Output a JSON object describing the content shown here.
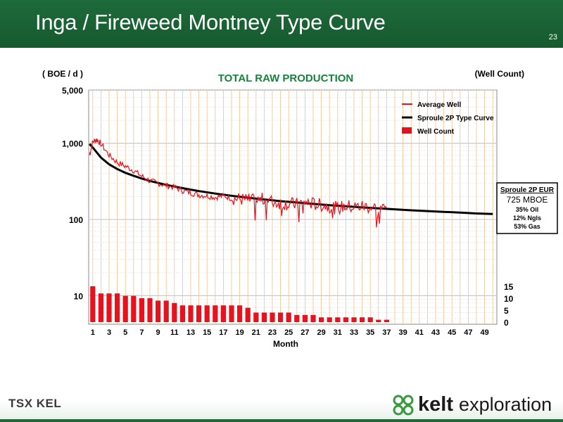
{
  "slide": {
    "title": "Inga / Fireweed Montney Type Curve",
    "page_number": "23"
  },
  "footer": {
    "tsx_logo_text": "TSX KEL",
    "company_name": "kelt",
    "company_suffix": "exploration"
  },
  "colors": {
    "header_green": "#1e6a3a",
    "average_well": "#e8121d",
    "type_curve": "#000000",
    "well_count": "#e8121d",
    "title_green": "#16823c",
    "grid_orange": "#f3c08a"
  },
  "eur_box": {
    "title": "Sproule 2P EUR",
    "value": "725 MBOE",
    "oil": "35% Oil",
    "ngls": "12% Ngls",
    "gas": "53% Gas"
  },
  "chart_data": {
    "type": "line",
    "title": "TOTAL RAW PRODUCTION",
    "ylabel": "( BOE / d )",
    "y2label": "(Well Count)",
    "xlabel": "Month",
    "yscale": "log",
    "ylim": [
      5,
      5000
    ],
    "y_ticks": [
      "5,000",
      "1,000",
      "100",
      "10"
    ],
    "y_tick_values": [
      5000,
      1000,
      100,
      10
    ],
    "y2_ticks": [
      "15",
      "10",
      "5",
      "0"
    ],
    "y2_tick_values": [
      15,
      10,
      5,
      0
    ],
    "y2lim": [
      0,
      15
    ],
    "x_ticks": [
      "1",
      "3",
      "5",
      "7",
      "9",
      "11",
      "13",
      "15",
      "17",
      "19",
      "21",
      "23",
      "25",
      "27",
      "29",
      "31",
      "33",
      "35",
      "37",
      "39",
      "41",
      "43",
      "45",
      "47",
      "49"
    ],
    "xlim": [
      0.5,
      50.5
    ],
    "grid": true,
    "legend_position": "top-right",
    "legend": [
      "Average Well",
      "Sproule 2P Type Curve",
      "Well Count"
    ],
    "series": [
      {
        "name": "Average Well",
        "kind": "line",
        "x": [
          0.6,
          1,
          1.5,
          2,
          3,
          4,
          5,
          6,
          7,
          8,
          9,
          10,
          11,
          12,
          13,
          14,
          15,
          16,
          17,
          18,
          19,
          20,
          21,
          22,
          23,
          24,
          25,
          26,
          27,
          28,
          29,
          30,
          31,
          32,
          33,
          34,
          35,
          36,
          37
        ],
        "values": [
          700,
          1050,
          1120,
          980,
          700,
          560,
          500,
          440,
          370,
          320,
          300,
          280,
          265,
          240,
          225,
          210,
          205,
          195,
          205,
          190,
          185,
          180,
          175,
          185,
          170,
          165,
          160,
          158,
          170,
          160,
          155,
          150,
          140,
          150,
          145,
          150,
          145,
          140,
          140
        ]
      },
      {
        "name": "Sproule 2P Type Curve",
        "kind": "line",
        "x": [
          0.6,
          1,
          2,
          3,
          4,
          5,
          6,
          7,
          8,
          10,
          12,
          14,
          16,
          18,
          20,
          22,
          24,
          26,
          28,
          30,
          32,
          34,
          36,
          38,
          40,
          42,
          44,
          46,
          48,
          50
        ],
        "values": [
          980,
          880,
          650,
          530,
          460,
          410,
          375,
          345,
          320,
          285,
          258,
          236,
          219,
          205,
          193,
          183,
          174,
          167,
          160,
          154,
          149,
          144,
          140,
          136,
          132,
          129,
          126,
          123,
          120,
          118
        ]
      },
      {
        "name": "Well Count",
        "kind": "bar",
        "axis": "y2",
        "x": [
          1,
          2,
          3,
          4,
          5,
          6,
          7,
          8,
          9,
          10,
          11,
          12,
          13,
          14,
          15,
          16,
          17,
          18,
          19,
          20,
          21,
          22,
          23,
          24,
          25,
          26,
          27,
          28,
          29,
          30,
          31,
          32,
          33,
          34,
          35,
          36,
          37
        ],
        "values": [
          15,
          12,
          12,
          12,
          11,
          11,
          10,
          10,
          9,
          9,
          8,
          7,
          7,
          7,
          7,
          7,
          7,
          7,
          7,
          6,
          4,
          4,
          4,
          4,
          4,
          3,
          3,
          3,
          2,
          2,
          2,
          2,
          2,
          2,
          2,
          1,
          1
        ]
      }
    ]
  }
}
